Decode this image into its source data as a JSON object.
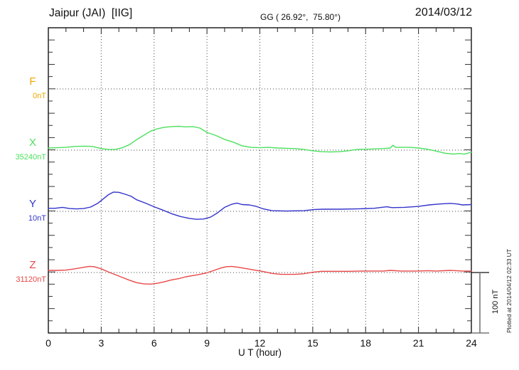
{
  "header": {
    "station": "Jaipur (JAI)  [IIG]",
    "coordinates": "GG ( 26.92°,  75.80°)",
    "date": "2014/03/12"
  },
  "channels": [
    {
      "name": "F",
      "unit": "0nT",
      "color": "#f0a500"
    },
    {
      "name": "X",
      "unit": "35240nT",
      "color": "#4ce05e"
    },
    {
      "name": "Y",
      "unit": "10nT",
      "color": "#3333cc"
    },
    {
      "name": "Z",
      "unit": "31120nT",
      "color": "#e84848"
    }
  ],
  "xaxis": {
    "label": "U T (hour)",
    "ticks": [
      0,
      3,
      6,
      9,
      12,
      15,
      18,
      21,
      24
    ],
    "minor_step_hours": 1,
    "range_hours": [
      0,
      24
    ]
  },
  "scale_bar": {
    "label": "100 nT",
    "value_nT": 100
  },
  "plot_note": "Plotted at 2014/04/12 02:33 UT",
  "chart_data": {
    "type": "line",
    "title": "Jaipur (JAI) [IIG] magnetogram 2014/03/12",
    "xlabel": "U T (hour)",
    "x_range": [
      0,
      24
    ],
    "x_ticks": [
      0,
      3,
      6,
      9,
      12,
      15,
      18,
      21,
      24
    ],
    "grid": "dotted vertical lines every 3 hours; dotted horizontal baseline per channel",
    "scale_nT_per_baseline_gap": 100,
    "minor_tick_nT": 20,
    "legend_position": "left-margin channel labels",
    "series": [
      {
        "name": "F",
        "baseline_label": "0nT",
        "color": "#f0a500",
        "points": []
      },
      {
        "name": "X",
        "baseline_label": "35240nT",
        "color": "#4ce05e",
        "points": [
          [
            0,
            3.5
          ],
          [
            0.5,
            4
          ],
          [
            1,
            4.5
          ],
          [
            1.5,
            6
          ],
          [
            2,
            6.5
          ],
          [
            2.5,
            6
          ],
          [
            3,
            2.5
          ],
          [
            3.4,
            1
          ],
          [
            3.8,
            1
          ],
          [
            4.2,
            4
          ],
          [
            4.6,
            9
          ],
          [
            5,
            17
          ],
          [
            5.4,
            24
          ],
          [
            5.8,
            31
          ],
          [
            6.2,
            35
          ],
          [
            6.6,
            37.5
          ],
          [
            7,
            38.5
          ],
          [
            7.4,
            39
          ],
          [
            7.8,
            38
          ],
          [
            8.2,
            38.5
          ],
          [
            8.6,
            36
          ],
          [
            9,
            29
          ],
          [
            9.5,
            24
          ],
          [
            10,
            17.5
          ],
          [
            10.5,
            13
          ],
          [
            11,
            7
          ],
          [
            11.5,
            4.5
          ],
          [
            12,
            4
          ],
          [
            12.5,
            4.5
          ],
          [
            13,
            3.5
          ],
          [
            13.5,
            3
          ],
          [
            14,
            2.5
          ],
          [
            14.5,
            1
          ],
          [
            15,
            -1
          ],
          [
            15.5,
            -2.5
          ],
          [
            16,
            -3
          ],
          [
            16.5,
            -2.5
          ],
          [
            17,
            -1
          ],
          [
            17.5,
            1
          ],
          [
            18,
            1.5
          ],
          [
            18.5,
            2
          ],
          [
            19,
            2.5
          ],
          [
            19.4,
            3.5
          ],
          [
            19.55,
            8
          ],
          [
            19.7,
            4.5
          ],
          [
            20,
            4.5
          ],
          [
            20.5,
            4.5
          ],
          [
            21,
            3.5
          ],
          [
            21.5,
            1.5
          ],
          [
            22,
            -1.5
          ],
          [
            22.5,
            -5
          ],
          [
            23,
            -6.5
          ],
          [
            23.3,
            -5.5
          ],
          [
            23.6,
            -6.5
          ],
          [
            24,
            -3.5
          ]
        ]
      },
      {
        "name": "Y",
        "baseline_label": "10nT",
        "color": "#3333cc",
        "points": [
          [
            0,
            5
          ],
          [
            0.4,
            5
          ],
          [
            0.8,
            6.5
          ],
          [
            1.2,
            4.5
          ],
          [
            1.6,
            4
          ],
          [
            2,
            4.5
          ],
          [
            2.4,
            7
          ],
          [
            2.8,
            13
          ],
          [
            3.1,
            20
          ],
          [
            3.4,
            27
          ],
          [
            3.7,
            31.5
          ],
          [
            4,
            31
          ],
          [
            4.3,
            28.5
          ],
          [
            4.7,
            24.5
          ],
          [
            5,
            19
          ],
          [
            5.5,
            13.5
          ],
          [
            6,
            7.5
          ],
          [
            6.5,
            2
          ],
          [
            7,
            -4
          ],
          [
            7.5,
            -8.5
          ],
          [
            8,
            -11.5
          ],
          [
            8.4,
            -13
          ],
          [
            8.8,
            -12.5
          ],
          [
            9.2,
            -9.5
          ],
          [
            9.6,
            -2.5
          ],
          [
            10,
            6.5
          ],
          [
            10.4,
            11.5
          ],
          [
            10.7,
            13.5
          ],
          [
            11,
            11
          ],
          [
            11.4,
            10.5
          ],
          [
            11.8,
            8
          ],
          [
            12.2,
            4
          ],
          [
            12.7,
            1
          ],
          [
            13.5,
            0.5
          ],
          [
            14.5,
            1
          ],
          [
            15.1,
            3
          ],
          [
            15.6,
            3.5
          ],
          [
            16.5,
            3.5
          ],
          [
            17.5,
            4
          ],
          [
            18.5,
            5
          ],
          [
            19.2,
            7.5
          ],
          [
            19.5,
            6
          ],
          [
            20.2,
            6.5
          ],
          [
            21,
            8
          ],
          [
            21.6,
            10.5
          ],
          [
            22.2,
            12
          ],
          [
            22.8,
            13
          ],
          [
            23.2,
            12
          ],
          [
            23.5,
            10.5
          ],
          [
            24,
            11
          ]
        ]
      },
      {
        "name": "Z",
        "baseline_label": "31120nT",
        "color": "#e84848",
        "points": [
          [
            0,
            3.5
          ],
          [
            0.5,
            3.5
          ],
          [
            1,
            4
          ],
          [
            1.5,
            6
          ],
          [
            2,
            8.5
          ],
          [
            2.3,
            10
          ],
          [
            2.6,
            9.5
          ],
          [
            3,
            6
          ],
          [
            3.4,
            1
          ],
          [
            3.8,
            -3.5
          ],
          [
            4.2,
            -8
          ],
          [
            4.6,
            -12.5
          ],
          [
            5,
            -16.5
          ],
          [
            5.4,
            -18.5
          ],
          [
            5.8,
            -19
          ],
          [
            6.2,
            -17.5
          ],
          [
            6.6,
            -15
          ],
          [
            7,
            -12
          ],
          [
            7.4,
            -10
          ],
          [
            7.8,
            -7
          ],
          [
            8.2,
            -5
          ],
          [
            8.6,
            -3
          ],
          [
            9,
            -0.5
          ],
          [
            9.4,
            3.5
          ],
          [
            9.8,
            7.5
          ],
          [
            10.1,
            9.5
          ],
          [
            10.4,
            10
          ],
          [
            10.8,
            8.5
          ],
          [
            11.2,
            6.5
          ],
          [
            11.7,
            4
          ],
          [
            12.2,
            1.5
          ],
          [
            12.7,
            -1.5
          ],
          [
            13.2,
            -3
          ],
          [
            14,
            -3
          ],
          [
            14.5,
            -2
          ],
          [
            15,
            0.5
          ],
          [
            15.5,
            2
          ],
          [
            16,
            2
          ],
          [
            17,
            2
          ],
          [
            18,
            2.5
          ],
          [
            19,
            2.5
          ],
          [
            19.4,
            3.5
          ],
          [
            20,
            2.5
          ],
          [
            21,
            2.5
          ],
          [
            21.5,
            3
          ],
          [
            22,
            2.5
          ],
          [
            22.8,
            3.5
          ],
          [
            23.5,
            2.5
          ],
          [
            24,
            2.5
          ]
        ]
      }
    ]
  }
}
